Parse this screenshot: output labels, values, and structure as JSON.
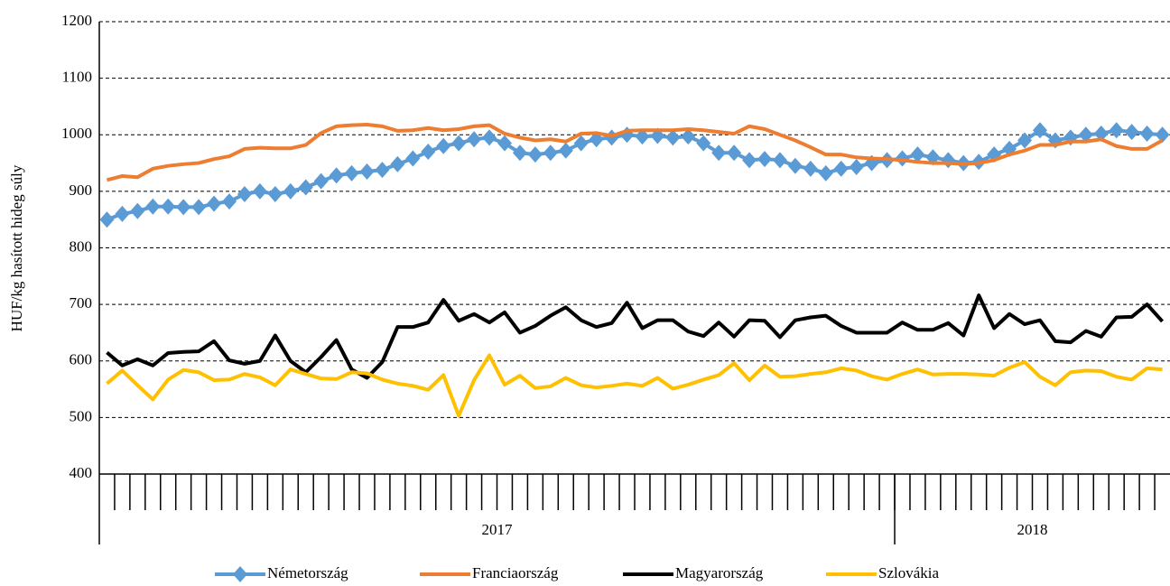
{
  "chart_data": {
    "type": "line",
    "y_axis_label": "HUF/kg hasított hideg súly",
    "categories": [
      null,
      null,
      null,
      null,
      null,
      null,
      null,
      null,
      null,
      null,
      null,
      null,
      null,
      null,
      null,
      null,
      null,
      null,
      null,
      null,
      null,
      null,
      null,
      null,
      null,
      null,
      null,
      null,
      null,
      null,
      null,
      null,
      null,
      null,
      null,
      null,
      null,
      null,
      null,
      null,
      null,
      null,
      null,
      null,
      null,
      null,
      null,
      null,
      null,
      null,
      null,
      null,
      null,
      null,
      null,
      null,
      null,
      null,
      null,
      null,
      null,
      null,
      null,
      null,
      null,
      null,
      null,
      null,
      null,
      null
    ],
    "groups": [
      {
        "label": "2017",
        "count": 52
      },
      {
        "label": "2018",
        "count": 18
      }
    ],
    "ylim": [
      400,
      1200
    ],
    "yticks": [
      400,
      500,
      600,
      700,
      800,
      900,
      1000,
      1100,
      1200
    ],
    "grid": true,
    "legend": "bottom",
    "series": [
      {
        "name": "Németország",
        "color": "#5b9bd5",
        "marker": "diamond",
        "values": [
          850,
          860,
          865,
          873,
          873,
          872,
          872,
          878,
          882,
          895,
          900,
          895,
          900,
          907,
          918,
          928,
          932,
          935,
          938,
          948,
          958,
          970,
          980,
          985,
          992,
          995,
          985,
          968,
          965,
          968,
          972,
          985,
          992,
          995,
          1000,
          997,
          998,
          995,
          997,
          985,
          968,
          968,
          955,
          957,
          955,
          945,
          940,
          932,
          940,
          943,
          950,
          955,
          958,
          965,
          960,
          955,
          950,
          952,
          965,
          975,
          990,
          1008,
          990,
          995,
          1000,
          1002,
          1008,
          1005,
          1002,
          1000
        ]
      },
      {
        "name": "Franciaország",
        "color": "#ed7d31",
        "values": [
          920,
          927,
          925,
          940,
          945,
          948,
          950,
          957,
          962,
          975,
          977,
          976,
          976,
          982,
          1003,
          1015,
          1017,
          1018,
          1015,
          1007,
          1008,
          1012,
          1008,
          1010,
          1015,
          1017,
          1002,
          995,
          990,
          992,
          988,
          1002,
          1003,
          998,
          1007,
          1008,
          1008,
          1008,
          1010,
          1008,
          1005,
          1002,
          1015,
          1010,
          1000,
          990,
          978,
          965,
          965,
          960,
          958,
          957,
          955,
          952,
          950,
          950,
          948,
          950,
          955,
          965,
          972,
          982,
          982,
          988,
          988,
          992,
          980,
          975,
          975,
          990
        ]
      },
      {
        "name": "Magyarország",
        "color": "#000000",
        "values": [
          615,
          592,
          603,
          592,
          614,
          616,
          617,
          635,
          601,
          595,
          600,
          645,
          600,
          580,
          607,
          637,
          585,
          570,
          598,
          660,
          660,
          668,
          708,
          671,
          683,
          668,
          686,
          650,
          662,
          680,
          695,
          672,
          660,
          667,
          703,
          658,
          672,
          672,
          652,
          644,
          668,
          643,
          672,
          671,
          642,
          672,
          677,
          680,
          662,
          650,
          650,
          650,
          668,
          655,
          655,
          667,
          645,
          716,
          658,
          683,
          665,
          672,
          635,
          633,
          653,
          643,
          677,
          678,
          700,
          670
        ]
      },
      {
        "name": "Szlovákia",
        "color": "#ffc000",
        "values": [
          560,
          583,
          557,
          532,
          567,
          584,
          580,
          566,
          567,
          577,
          571,
          557,
          585,
          577,
          569,
          568,
          580,
          578,
          567,
          560,
          556,
          549,
          575,
          503,
          566,
          610,
          558,
          574,
          552,
          555,
          570,
          557,
          553,
          556,
          560,
          556,
          570,
          551,
          558,
          567,
          575,
          596,
          566,
          592,
          572,
          573,
          577,
          580,
          587,
          583,
          573,
          567,
          577,
          585,
          576,
          577,
          577,
          576,
          574,
          588,
          598,
          572,
          557,
          580,
          583,
          582,
          572,
          567,
          587,
          585
        ]
      }
    ]
  }
}
